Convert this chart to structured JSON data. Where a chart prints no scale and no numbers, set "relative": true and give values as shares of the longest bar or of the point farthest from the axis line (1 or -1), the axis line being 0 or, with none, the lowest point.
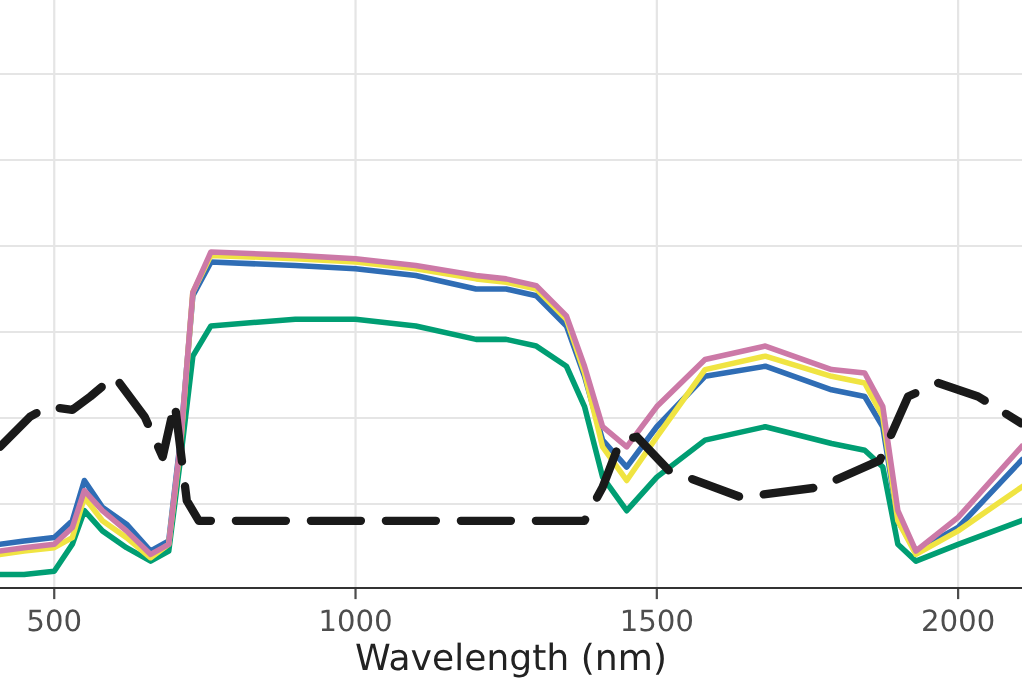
{
  "chart_data": {
    "type": "line",
    "xlabel": "Wavelength (nm)",
    "relative": true,
    "grid": true,
    "tick_labels": "x",
    "xlim": [
      410,
      2106
    ],
    "xticks": [
      500,
      1000,
      1500,
      2000
    ],
    "x": [
      410,
      450,
      500,
      530,
      550,
      580,
      620,
      660,
      690,
      710,
      730,
      760,
      900,
      1000,
      1100,
      1200,
      1250,
      1300,
      1350,
      1380,
      1410,
      1450,
      1500,
      1580,
      1680,
      1790,
      1845,
      1875,
      1900,
      1930,
      2000,
      2105
    ],
    "series": [
      {
        "color": "#009e73",
        "values": [
          0.04,
          0.04,
          0.05,
          0.13,
          0.23,
          0.17,
          0.12,
          0.08,
          0.11,
          0.39,
          0.69,
          0.78,
          0.8,
          0.8,
          0.78,
          0.74,
          0.74,
          0.72,
          0.66,
          0.54,
          0.33,
          0.23,
          0.33,
          0.44,
          0.48,
          0.43,
          0.41,
          0.36,
          0.13,
          0.08,
          0.13,
          0.2
        ]
      },
      {
        "color": "#2f6db5",
        "values": [
          0.13,
          0.14,
          0.15,
          0.2,
          0.32,
          0.24,
          0.19,
          0.11,
          0.14,
          0.45,
          0.87,
          0.97,
          0.96,
          0.95,
          0.93,
          0.89,
          0.89,
          0.87,
          0.78,
          0.63,
          0.44,
          0.36,
          0.48,
          0.63,
          0.66,
          0.59,
          0.57,
          0.48,
          0.2,
          0.11,
          0.18,
          0.38
        ]
      },
      {
        "color": "#f0e442",
        "values": [
          0.1,
          0.11,
          0.12,
          0.15,
          0.27,
          0.2,
          0.15,
          0.09,
          0.13,
          0.43,
          0.88,
          0.99,
          0.98,
          0.97,
          0.95,
          0.92,
          0.91,
          0.89,
          0.8,
          0.64,
          0.42,
          0.32,
          0.45,
          0.65,
          0.69,
          0.63,
          0.61,
          0.51,
          0.2,
          0.1,
          0.17,
          0.3
        ]
      },
      {
        "color": "#cc79a7",
        "values": [
          0.11,
          0.12,
          0.13,
          0.18,
          0.29,
          0.23,
          0.17,
          0.1,
          0.13,
          0.44,
          0.88,
          1.0,
          0.99,
          0.98,
          0.96,
          0.93,
          0.92,
          0.9,
          0.81,
          0.66,
          0.48,
          0.42,
          0.54,
          0.68,
          0.72,
          0.65,
          0.64,
          0.54,
          0.23,
          0.11,
          0.21,
          0.42
        ]
      },
      {
        "color": "#1a1a1a",
        "line_style": "dashed",
        "x": [
          410,
          460,
          490,
          530,
          560,
          600,
          650,
          680,
          700,
          720,
          740,
          1000,
          1350,
          1380,
          1410,
          1440,
          1467,
          1520,
          1640,
          1770,
          1870,
          1917,
          1967,
          2033,
          2105
        ],
        "values": [
          0.42,
          0.51,
          0.54,
          0.53,
          0.57,
          0.63,
          0.51,
          0.39,
          0.55,
          0.26,
          0.2,
          0.2,
          0.2,
          0.2,
          0.3,
          0.44,
          0.45,
          0.35,
          0.27,
          0.3,
          0.38,
          0.57,
          0.61,
          0.57,
          0.49
        ]
      }
    ]
  }
}
